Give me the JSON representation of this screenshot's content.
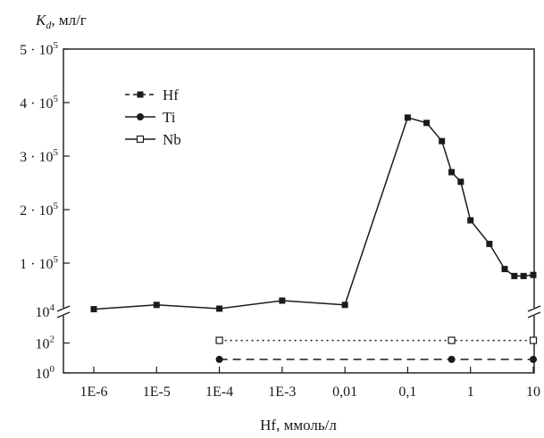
{
  "chart_data": {
    "type": "line",
    "ylabel": "K_d, мл/г",
    "ylabel_main": "K",
    "ylabel_sub": "d",
    "ylabel_rest": ", мл/г",
    "xlabel": "Hf, ммоль/л",
    "x_scale": "log",
    "x_range": [
      1e-06,
      10
    ],
    "x_ticks": [
      {
        "value": 1e-06,
        "label": "1E-6"
      },
      {
        "value": 1e-05,
        "label": "1E-5"
      },
      {
        "value": 0.0001,
        "label": "1E-4"
      },
      {
        "value": 0.001,
        "label": "1E-3"
      },
      {
        "value": 0.01,
        "label": "0,01"
      },
      {
        "value": 0.1,
        "label": "0,1"
      },
      {
        "value": 1,
        "label": "1"
      },
      {
        "value": 10,
        "label": "10"
      }
    ],
    "y_axis_break": true,
    "y_lower_scale": "log",
    "y_lower_range": [
      1,
      10000
    ],
    "y_lower_ticks": [
      {
        "value": 1,
        "base": "10",
        "exp": "0"
      },
      {
        "value": 100,
        "base": "10",
        "exp": "2"
      },
      {
        "value": 10000,
        "base": "10",
        "exp": "4"
      }
    ],
    "y_upper_scale": "linear",
    "y_upper_range": [
      10000,
      500000
    ],
    "y_upper_ticks": [
      {
        "value": 100000,
        "mult": "1 · 10",
        "exp": "5"
      },
      {
        "value": 200000,
        "mult": "2 · 10",
        "exp": "5"
      },
      {
        "value": 300000,
        "mult": "3 · 10",
        "exp": "5"
      },
      {
        "value": 400000,
        "mult": "4 · 10",
        "exp": "5"
      },
      {
        "value": 500000,
        "mult": "5 · 10",
        "exp": "5"
      }
    ],
    "legend_position": "top-left",
    "series": [
      {
        "name": "Hf",
        "marker": "filled-square",
        "line": "solid",
        "legend_line": "dashed",
        "color": "#1a1a1a",
        "points": [
          {
            "x": 1e-06,
            "y": 14000
          },
          {
            "x": 1e-05,
            "y": 22000
          },
          {
            "x": 0.0001,
            "y": 15000
          },
          {
            "x": 0.001,
            "y": 30000
          },
          {
            "x": 0.01,
            "y": 22000
          },
          {
            "x": 0.1,
            "y": 372000
          },
          {
            "x": 0.2,
            "y": 362000
          },
          {
            "x": 0.35,
            "y": 328000
          },
          {
            "x": 0.5,
            "y": 270000
          },
          {
            "x": 0.7,
            "y": 252000
          },
          {
            "x": 1,
            "y": 180000
          },
          {
            "x": 2,
            "y": 136000
          },
          {
            "x": 3.5,
            "y": 89000
          },
          {
            "x": 5,
            "y": 76000
          },
          {
            "x": 7,
            "y": 76000
          },
          {
            "x": 10,
            "y": 78000
          }
        ]
      },
      {
        "name": "Ti",
        "marker": "filled-circle",
        "line": "dashed",
        "legend_line": "solid",
        "color": "#1a1a1a",
        "points": [
          {
            "x": 0.0001,
            "y": 8
          },
          {
            "x": 0.5,
            "y": 8
          },
          {
            "x": 10,
            "y": 8
          }
        ]
      },
      {
        "name": "Nb",
        "marker": "open-square",
        "line": "dotted",
        "legend_line": "solid",
        "color": "#1a1a1a",
        "points": [
          {
            "x": 0.0001,
            "y": 150
          },
          {
            "x": 0.5,
            "y": 150
          },
          {
            "x": 10,
            "y": 150
          }
        ]
      }
    ]
  }
}
